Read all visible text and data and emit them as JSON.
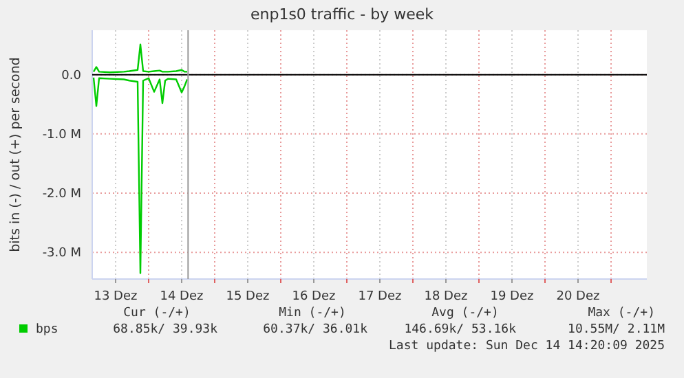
{
  "chart_data": {
    "type": "line",
    "title": "enp1s0 traffic - by week",
    "ylabel": "bits in (-) / out (+) per second",
    "x": [
      "2025-12-13T04:00",
      "2025-12-13T05:00",
      "2025-12-13T06:00",
      "2025-12-13T10:00",
      "2025-12-13T15:00",
      "2025-12-13T17:00",
      "2025-12-13T20:00",
      "2025-12-13T21:00",
      "2025-12-13T22:00",
      "2025-12-14T00:00",
      "2025-12-14T02:00",
      "2025-12-14T04:00",
      "2025-12-14T05:00",
      "2025-12-14T06:00",
      "2025-12-14T07:00",
      "2025-12-14T10:00",
      "2025-12-14T12:00",
      "2025-12-14T13:00",
      "2025-12-14T14:00"
    ],
    "series": [
      {
        "name": "bps",
        "color": "#00cc00",
        "values": [
          -0.05,
          -0.53,
          -0.06,
          -0.07,
          -0.08,
          -0.1,
          -0.12,
          -3.35,
          -0.1,
          -0.06,
          -0.29,
          -0.08,
          -0.48,
          -0.1,
          -0.07,
          -0.08,
          -0.3,
          -0.2,
          -0.08
        ]
      },
      {
        "color": "#00cc00",
        "values": [
          0.05,
          0.13,
          0.05,
          0.04,
          0.05,
          0.06,
          0.08,
          0.51,
          0.06,
          0.05,
          0.06,
          0.07,
          0.05,
          0.05,
          0.05,
          0.06,
          0.08,
          0.05,
          0.05
        ]
      }
    ],
    "xlim": [
      "2025-12-13T03:30",
      "2025-12-21T13:00"
    ],
    "xticks": [
      {
        "value": "2025-12-13T12:00",
        "label": "13 Dez"
      },
      {
        "value": "2025-12-14T00:00",
        "label": null
      },
      {
        "value": "2025-12-14T12:00",
        "label": "14 Dez"
      },
      {
        "value": "2025-12-15T00:00",
        "label": null
      },
      {
        "value": "2025-12-15T12:00",
        "label": "15 Dez"
      },
      {
        "value": "2025-12-16T00:00",
        "label": null
      },
      {
        "value": "2025-12-16T12:00",
        "label": "16 Dez"
      },
      {
        "value": "2025-12-17T00:00",
        "label": null
      },
      {
        "value": "2025-12-17T12:00",
        "label": "17 Dez"
      },
      {
        "value": "2025-12-18T00:00",
        "label": null
      },
      {
        "value": "2025-12-18T12:00",
        "label": "18 Dez"
      },
      {
        "value": "2025-12-19T00:00",
        "label": null
      },
      {
        "value": "2025-12-19T12:00",
        "label": "19 Dez"
      },
      {
        "value": "2025-12-20T00:00",
        "label": null
      },
      {
        "value": "2025-12-20T12:00",
        "label": "20 Dez"
      },
      {
        "value": "2025-12-21T00:00",
        "label": null
      }
    ],
    "ylim": [
      -3.45,
      0.75
    ],
    "yticks": [
      {
        "value": 0,
        "label": "0.0"
      },
      {
        "value": -1,
        "label": "-1.0 M"
      },
      {
        "value": -2,
        "label": "-2.0 M"
      },
      {
        "value": -3,
        "label": "-3.0 M"
      }
    ],
    "grid": true,
    "legend": "bottom left",
    "marker": "none",
    "line_style": "solid",
    "ref_lines": [
      {
        "axis": "y",
        "value": 0,
        "color": "#000000"
      },
      {
        "axis": "x",
        "value": "2025-12-14T14:20",
        "color": "#999999"
      }
    ],
    "annotations": [
      "Cur (-/+)",
      "Min (-/+)",
      "Avg (-/+)",
      "Max (-/+)",
      "68.85k/ 39.93k",
      "60.37k/ 36.01k",
      "146.69k/ 53.16k",
      "10.55M/ 2.11M",
      "Last update: Sun Dec 14 14:20:09 2025"
    ]
  }
}
